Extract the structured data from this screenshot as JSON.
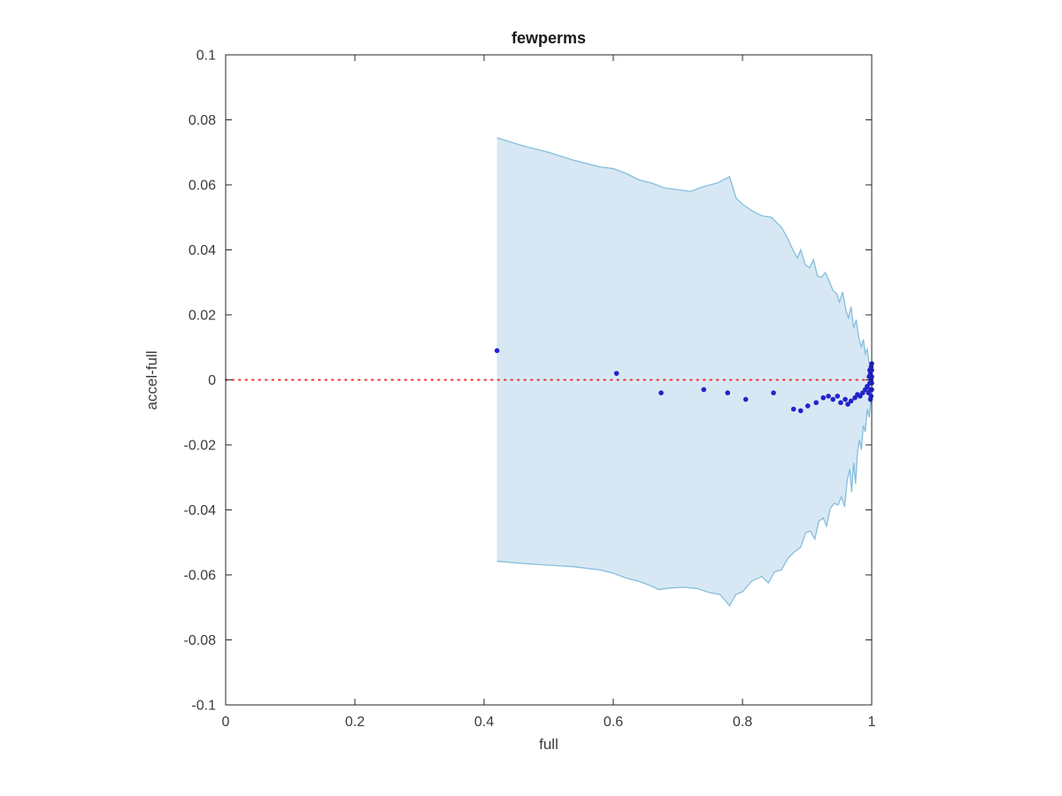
{
  "chart_data": {
    "type": "scatter",
    "title": "fewperms",
    "xlabel": "full",
    "ylabel": "accel-full",
    "xlim": [
      0,
      1
    ],
    "ylim": [
      -0.1,
      0.1
    ],
    "grid": false,
    "legend": "none",
    "x_ticks": [
      0,
      0.2,
      0.4,
      0.6,
      0.8,
      1
    ],
    "x_tick_labels": [
      "0",
      "0.2",
      "0.4",
      "0.6",
      "0.8",
      "1"
    ],
    "y_ticks": [
      -0.1,
      -0.08,
      -0.06,
      -0.04,
      -0.02,
      0,
      0.02,
      0.04,
      0.06,
      0.08,
      0.1
    ],
    "y_tick_labels": [
      "-0.1",
      "-0.08",
      "-0.06",
      "-0.04",
      "-0.02",
      "0",
      "0.02",
      "0.04",
      "0.06",
      "0.08",
      "0.1"
    ],
    "colors": {
      "band_fill": "#d7e8f4",
      "band_edge": "#85bedd",
      "scatter": "#2222cc",
      "zero_line": "#f03030",
      "axis": "#262626"
    },
    "zero_line": {
      "y": 0,
      "x_start": 0,
      "x_end": 1,
      "style": "dotted"
    },
    "band": {
      "upper": [
        [
          0.42,
          0.0745
        ],
        [
          0.46,
          0.072
        ],
        [
          0.5,
          0.07
        ],
        [
          0.54,
          0.0675
        ],
        [
          0.58,
          0.0655
        ],
        [
          0.6,
          0.065
        ],
        [
          0.62,
          0.0635
        ],
        [
          0.64,
          0.0615
        ],
        [
          0.66,
          0.0605
        ],
        [
          0.68,
          0.059
        ],
        [
          0.7,
          0.0585
        ],
        [
          0.72,
          0.058
        ],
        [
          0.74,
          0.0595
        ],
        [
          0.76,
          0.0605
        ],
        [
          0.78,
          0.0625
        ],
        [
          0.79,
          0.056
        ],
        [
          0.8,
          0.054
        ],
        [
          0.815,
          0.052
        ],
        [
          0.83,
          0.0505
        ],
        [
          0.845,
          0.05
        ],
        [
          0.86,
          0.047
        ],
        [
          0.87,
          0.0435
        ],
        [
          0.878,
          0.04
        ],
        [
          0.885,
          0.0375
        ],
        [
          0.89,
          0.04
        ],
        [
          0.897,
          0.0355
        ],
        [
          0.904,
          0.0345
        ],
        [
          0.91,
          0.037
        ],
        [
          0.916,
          0.032
        ],
        [
          0.922,
          0.0315
        ],
        [
          0.928,
          0.033
        ],
        [
          0.934,
          0.0305
        ],
        [
          0.94,
          0.0275
        ],
        [
          0.946,
          0.0265
        ],
        [
          0.95,
          0.024
        ],
        [
          0.955,
          0.027
        ],
        [
          0.96,
          0.0215
        ],
        [
          0.964,
          0.019
        ],
        [
          0.968,
          0.0225
        ],
        [
          0.972,
          0.016
        ],
        [
          0.976,
          0.0185
        ],
        [
          0.98,
          0.013
        ],
        [
          0.984,
          0.01
        ],
        [
          0.987,
          0.0125
        ],
        [
          0.99,
          0.008
        ],
        [
          0.993,
          0.0095
        ],
        [
          0.996,
          0.005
        ],
        [
          1.0,
          0.003
        ]
      ],
      "lower": [
        [
          0.42,
          -0.0558
        ],
        [
          0.46,
          -0.0565
        ],
        [
          0.5,
          -0.057
        ],
        [
          0.54,
          -0.0575
        ],
        [
          0.58,
          -0.0585
        ],
        [
          0.6,
          -0.0595
        ],
        [
          0.62,
          -0.061
        ],
        [
          0.64,
          -0.062
        ],
        [
          0.66,
          -0.0635
        ],
        [
          0.67,
          -0.0645
        ],
        [
          0.69,
          -0.064
        ],
        [
          0.71,
          -0.0638
        ],
        [
          0.73,
          -0.0642
        ],
        [
          0.75,
          -0.0655
        ],
        [
          0.765,
          -0.066
        ],
        [
          0.78,
          -0.0695
        ],
        [
          0.79,
          -0.066
        ],
        [
          0.8,
          -0.0652
        ],
        [
          0.815,
          -0.0618
        ],
        [
          0.83,
          -0.0605
        ],
        [
          0.84,
          -0.0625
        ],
        [
          0.85,
          -0.059
        ],
        [
          0.86,
          -0.0585
        ],
        [
          0.87,
          -0.055
        ],
        [
          0.88,
          -0.053
        ],
        [
          0.89,
          -0.0515
        ],
        [
          0.898,
          -0.047
        ],
        [
          0.905,
          -0.0465
        ],
        [
          0.912,
          -0.049
        ],
        [
          0.918,
          -0.0435
        ],
        [
          0.925,
          -0.0425
        ],
        [
          0.93,
          -0.045
        ],
        [
          0.936,
          -0.0395
        ],
        [
          0.942,
          -0.038
        ],
        [
          0.948,
          -0.0385
        ],
        [
          0.953,
          -0.036
        ],
        [
          0.958,
          -0.039
        ],
        [
          0.962,
          -0.031
        ],
        [
          0.966,
          -0.0275
        ],
        [
          0.969,
          -0.0345
        ],
        [
          0.972,
          -0.0255
        ],
        [
          0.975,
          -0.032
        ],
        [
          0.978,
          -0.022
        ],
        [
          0.981,
          -0.0185
        ],
        [
          0.984,
          -0.0215
        ],
        [
          0.987,
          -0.014
        ],
        [
          0.99,
          -0.016
        ],
        [
          0.993,
          -0.009
        ],
        [
          0.996,
          -0.0115
        ],
        [
          1.0,
          -0.004
        ]
      ]
    },
    "points": [
      [
        0.42,
        0.009
      ],
      [
        0.605,
        0.002
      ],
      [
        0.674,
        -0.004
      ],
      [
        0.74,
        -0.003
      ],
      [
        0.777,
        -0.004
      ],
      [
        0.805,
        -0.006
      ],
      [
        0.848,
        -0.004
      ],
      [
        0.879,
        -0.009
      ],
      [
        0.89,
        -0.0095
      ],
      [
        0.901,
        -0.008
      ],
      [
        0.914,
        -0.007
      ],
      [
        0.925,
        -0.0055
      ],
      [
        0.933,
        -0.005
      ],
      [
        0.94,
        -0.006
      ],
      [
        0.947,
        -0.005
      ],
      [
        0.952,
        -0.007
      ],
      [
        0.959,
        -0.006
      ],
      [
        0.963,
        -0.0075
      ],
      [
        0.968,
        -0.0065
      ],
      [
        0.974,
        -0.0055
      ],
      [
        0.978,
        -0.0045
      ],
      [
        0.982,
        -0.005
      ],
      [
        0.986,
        -0.004
      ],
      [
        0.99,
        -0.003
      ],
      [
        0.993,
        -0.002
      ],
      [
        0.995,
        -0.004
      ],
      [
        0.996,
        0.001
      ],
      [
        0.997,
        -0.001
      ],
      [
        0.997,
        0.003
      ],
      [
        0.998,
        0.002
      ],
      [
        0.998,
        -0.003
      ],
      [
        0.999,
        0.0
      ],
      [
        0.999,
        0.004
      ],
      [
        0.999,
        -0.005
      ],
      [
        1.0,
        -0.001
      ],
      [
        1.0,
        0.001
      ],
      [
        1.0,
        0.003
      ],
      [
        1.0,
        -0.003
      ],
      [
        1.0,
        0.005
      ],
      [
        0.998,
        -0.006
      ]
    ]
  }
}
